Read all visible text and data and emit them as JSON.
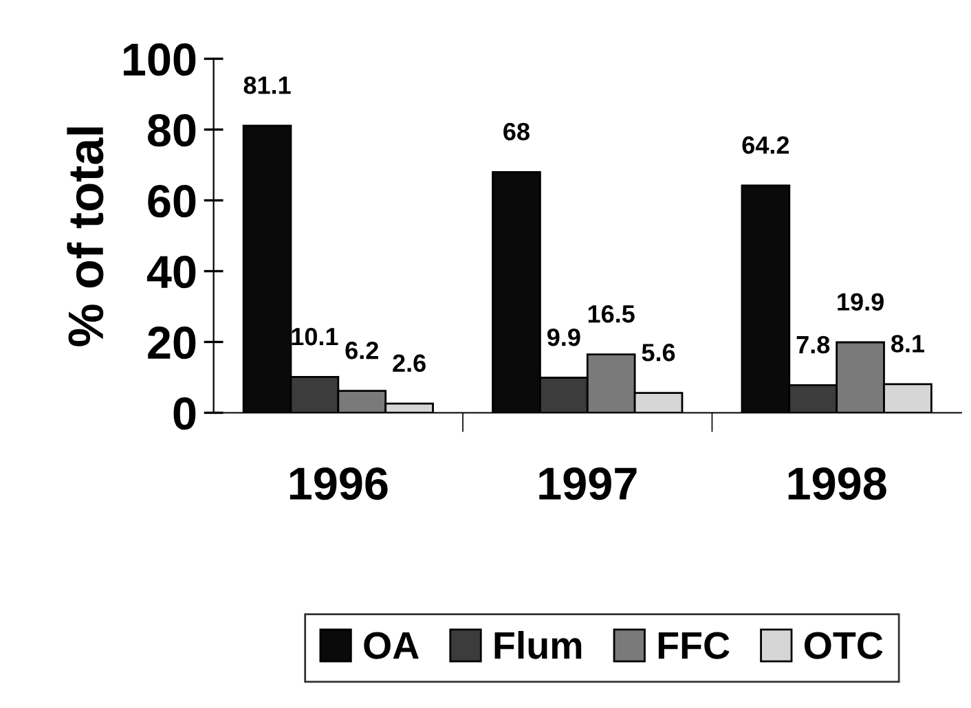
{
  "chart_data": {
    "type": "bar",
    "ylabel": "% of total",
    "categories": [
      "1996",
      "1997",
      "1998"
    ],
    "series": [
      {
        "name": "OA",
        "color": "#0a0a0a",
        "values": [
          81.1,
          68,
          64.2
        ],
        "value_labels": [
          "81.1",
          "68",
          "64.2"
        ]
      },
      {
        "name": "Flum",
        "color": "#3c3c3c",
        "values": [
          10.1,
          9.9,
          7.8
        ],
        "value_labels": [
          "10.1",
          "9.9",
          "7.8"
        ]
      },
      {
        "name": "FFC",
        "color": "#7a7a7a",
        "values": [
          6.2,
          16.5,
          19.9
        ],
        "value_labels": [
          "6.2",
          "16.5",
          "19.9"
        ]
      },
      {
        "name": "OTC",
        "color": "#d6d6d6",
        "values": [
          2.6,
          5.6,
          8.1
        ],
        "value_labels": [
          "2.6",
          "5.6",
          "8.1"
        ]
      }
    ],
    "ylim": [
      0,
      100
    ],
    "yticks": [
      0,
      20,
      40,
      60,
      80,
      100
    ],
    "grid": false,
    "legend": "bottom"
  }
}
